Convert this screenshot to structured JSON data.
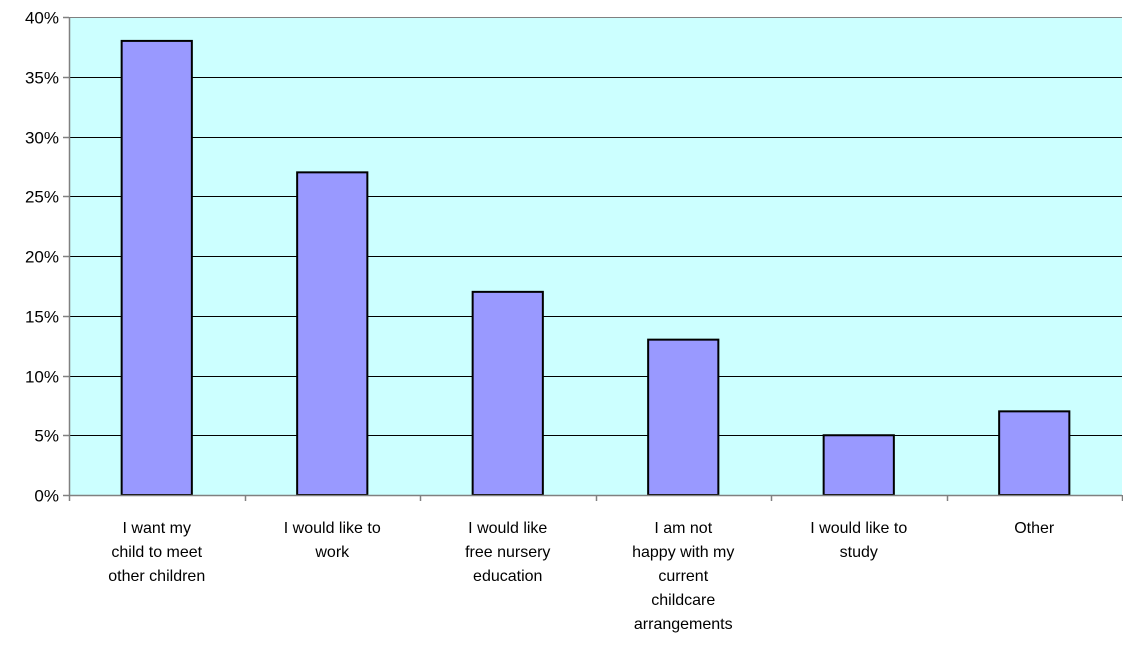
{
  "chart_data": {
    "type": "bar",
    "title": "",
    "xlabel": "",
    "ylabel": "",
    "categories": [
      [
        "I want my",
        "child to meet",
        "other children"
      ],
      [
        "I would like to",
        "work"
      ],
      [
        "I would like",
        "free nursery",
        "education"
      ],
      [
        "I am not",
        "happy with my",
        "current",
        "childcare",
        "arrangements"
      ],
      [
        "I would like to",
        "study"
      ],
      [
        "Other"
      ]
    ],
    "values": [
      38,
      27,
      17,
      13,
      5,
      7
    ],
    "ylim": [
      0,
      40
    ],
    "yticks": [
      0,
      5,
      10,
      15,
      20,
      25,
      30,
      35,
      40
    ],
    "ytick_labels": [
      "0%",
      "5%",
      "10%",
      "15%",
      "20%",
      "25%",
      "30%",
      "35%",
      "40%"
    ],
    "grid": true,
    "legend": "none",
    "colors": {
      "plot_background": "#ccffff",
      "bar_fill": "#9999ff",
      "bar_stroke": "#000000",
      "gridline": "#000000",
      "axis": "#808080"
    }
  }
}
